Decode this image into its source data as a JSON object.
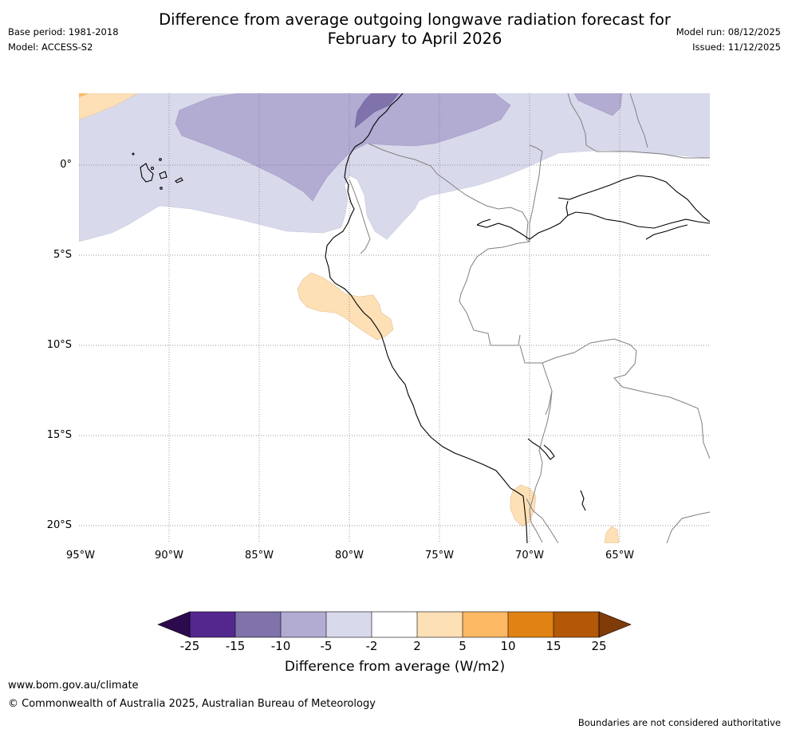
{
  "title": {
    "line1": "Difference from average outgoing longwave radiation forecast for",
    "line2": "February to April 2026"
  },
  "meta": {
    "base_period": "Base period: 1981-2018",
    "model": "Model: ACCESS-S2",
    "model_run": "Model run: 08/12/2025",
    "issued": "Issued: 11/12/2025"
  },
  "map": {
    "lat_labels": [
      "0°",
      "5°S",
      "10°S",
      "15°S",
      "20°S"
    ],
    "lon_labels": [
      "95°W",
      "90°W",
      "85°W",
      "80°W",
      "75°W",
      "70°W",
      "65°W"
    ]
  },
  "colorbar": {
    "ticks": [
      "-25",
      "-15",
      "-10",
      "-5",
      "-2",
      "2",
      "5",
      "10",
      "15",
      "25"
    ],
    "label": "Difference from average (W/m2)",
    "colors": {
      "below_min": "#2d0a4e",
      "bins": [
        "#54278f",
        "#8073ac",
        "#b2abd2",
        "#d8daeb",
        "#ffffff",
        "#fee0b6",
        "#fdb863",
        "#e08214",
        "#b35806"
      ],
      "above_max": "#7f3b08"
    }
  },
  "footer": {
    "url": "www.bom.gov.au/climate",
    "copyright": "© Commonwealth of Australia 2025, Australian Bureau of Meteorology",
    "note": "Boundaries are not considered authoritative"
  }
}
